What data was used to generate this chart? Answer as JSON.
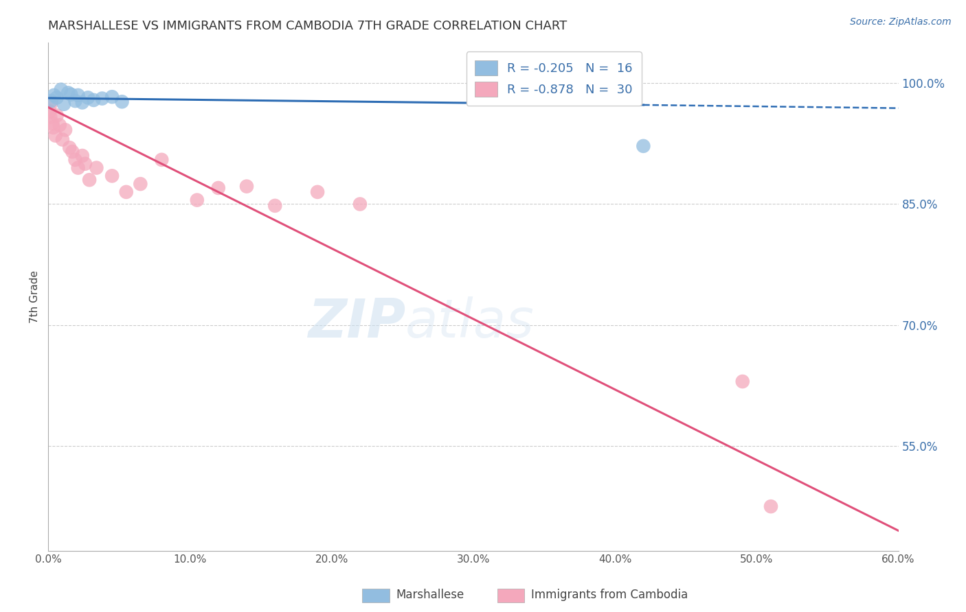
{
  "title": "MARSHALLESE VS IMMIGRANTS FROM CAMBODIA 7TH GRADE CORRELATION CHART",
  "source": "Source: ZipAtlas.com",
  "ylabel": "7th Grade",
  "x_tick_labels": [
    "0.0%",
    "10.0%",
    "20.0%",
    "30.0%",
    "40.0%",
    "50.0%",
    "60.0%"
  ],
  "x_tick_vals": [
    0.0,
    10.0,
    20.0,
    30.0,
    40.0,
    50.0,
    60.0
  ],
  "y_tick_labels": [
    "55.0%",
    "70.0%",
    "85.0%",
    "100.0%"
  ],
  "y_tick_vals": [
    55.0,
    70.0,
    85.0,
    100.0
  ],
  "xlim": [
    0.0,
    60.0
  ],
  "ylim": [
    42.0,
    105.0
  ],
  "legend_r_vals": [
    "R = -0.205",
    "R = -0.878"
  ],
  "legend_n_vals": [
    "N =  16",
    "N =  30"
  ],
  "blue_color": "#92bde0",
  "pink_color": "#f4a8bc",
  "blue_line_color": "#2e6db4",
  "pink_line_color": "#e0507a",
  "right_axis_color": "#3a6faa",
  "watermark_zip": "ZIP",
  "watermark_atlas": "atlas",
  "blue_scatter_x": [
    0.2,
    0.4,
    0.6,
    0.9,
    1.1,
    1.4,
    1.6,
    1.9,
    2.1,
    2.4,
    2.8,
    3.2,
    3.8,
    4.5,
    5.2,
    42.0
  ],
  "blue_scatter_y": [
    97.8,
    98.5,
    98.2,
    99.2,
    97.4,
    98.8,
    98.6,
    97.8,
    98.5,
    97.6,
    98.2,
    97.9,
    98.1,
    98.3,
    97.7,
    92.2
  ],
  "pink_scatter_x": [
    0.1,
    0.15,
    0.2,
    0.3,
    0.35,
    0.5,
    0.6,
    0.8,
    1.0,
    1.2,
    1.5,
    1.7,
    1.9,
    2.1,
    2.4,
    2.6,
    2.9,
    3.4,
    4.5,
    5.5,
    6.5,
    8.0,
    10.5,
    12.0,
    14.0,
    16.0,
    19.0,
    22.0,
    49.0,
    51.0
  ],
  "pink_scatter_y": [
    96.5,
    95.8,
    97.5,
    95.0,
    94.5,
    93.5,
    96.0,
    94.8,
    93.0,
    94.2,
    92.0,
    91.5,
    90.5,
    89.5,
    91.0,
    90.0,
    88.0,
    89.5,
    88.5,
    86.5,
    87.5,
    90.5,
    85.5,
    87.0,
    87.2,
    84.8,
    86.5,
    85.0,
    63.0,
    47.5
  ],
  "blue_line_x_start": 0.0,
  "blue_line_x_solid_end": 42.0,
  "blue_line_x_dashed_end": 60.0,
  "blue_line_y_at_0": 98.15,
  "blue_line_y_at_42": 97.3,
  "blue_line_y_at_60": 96.9,
  "pink_line_x_start": 0.0,
  "pink_line_x_end": 60.0,
  "pink_line_y_at_0": 97.0,
  "pink_line_y_at_60": 44.5
}
